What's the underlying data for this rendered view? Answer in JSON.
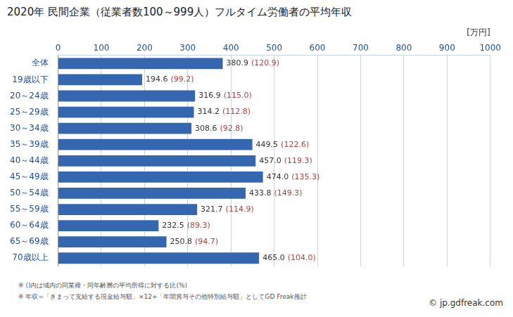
{
  "chart_data": {
    "type": "bar",
    "orientation": "horizontal",
    "title": "2020年 民間企業（従業者数100～999人）フルタイム労働者の平均年収",
    "xlabel": "[万円]",
    "categories": [
      "全体",
      "19歳以下",
      "20～24歳",
      "25～29歳",
      "30～34歳",
      "35～39歳",
      "40～44歳",
      "45～49歳",
      "50～54歳",
      "55～59歳",
      "60～64歳",
      "65～69歳",
      "70歳以上"
    ],
    "values": [
      380.9,
      194.6,
      316.9,
      314.2,
      308.6,
      449.5,
      457.0,
      474.0,
      433.8,
      321.7,
      232.5,
      250.8,
      465.0
    ],
    "value_labels": [
      "380.9",
      "194.6",
      "316.9",
      "314.2",
      "308.6",
      "449.5",
      "457.0",
      "474.0",
      "433.8",
      "321.7",
      "232.5",
      "250.8",
      "465.0"
    ],
    "ratio_labels": [
      "(120.9)",
      "(99.2)",
      "(115.0)",
      "(112.8)",
      "(92.8)",
      "(122.6)",
      "(119.3)",
      "(135.3)",
      "(149.3)",
      "(114.9)",
      "(89.3)",
      "(94.7)",
      "(104.0)"
    ],
    "color": "#3566b0",
    "xlim": [
      0,
      1000
    ],
    "xticks": [
      0,
      100,
      200,
      300,
      400,
      500,
      600,
      700,
      800,
      900,
      1000
    ],
    "grid": true,
    "data_labels": true,
    "footnotes": [
      "※ ()内は域内の同業種・同年齢層の平均所得に対する比(%)",
      "※ 年収=「きまって支給する現金給与額」×12+「年間賞与その他特別給与額」としてGD Freak推計"
    ],
    "source": "© jp.gdfreak.com"
  }
}
